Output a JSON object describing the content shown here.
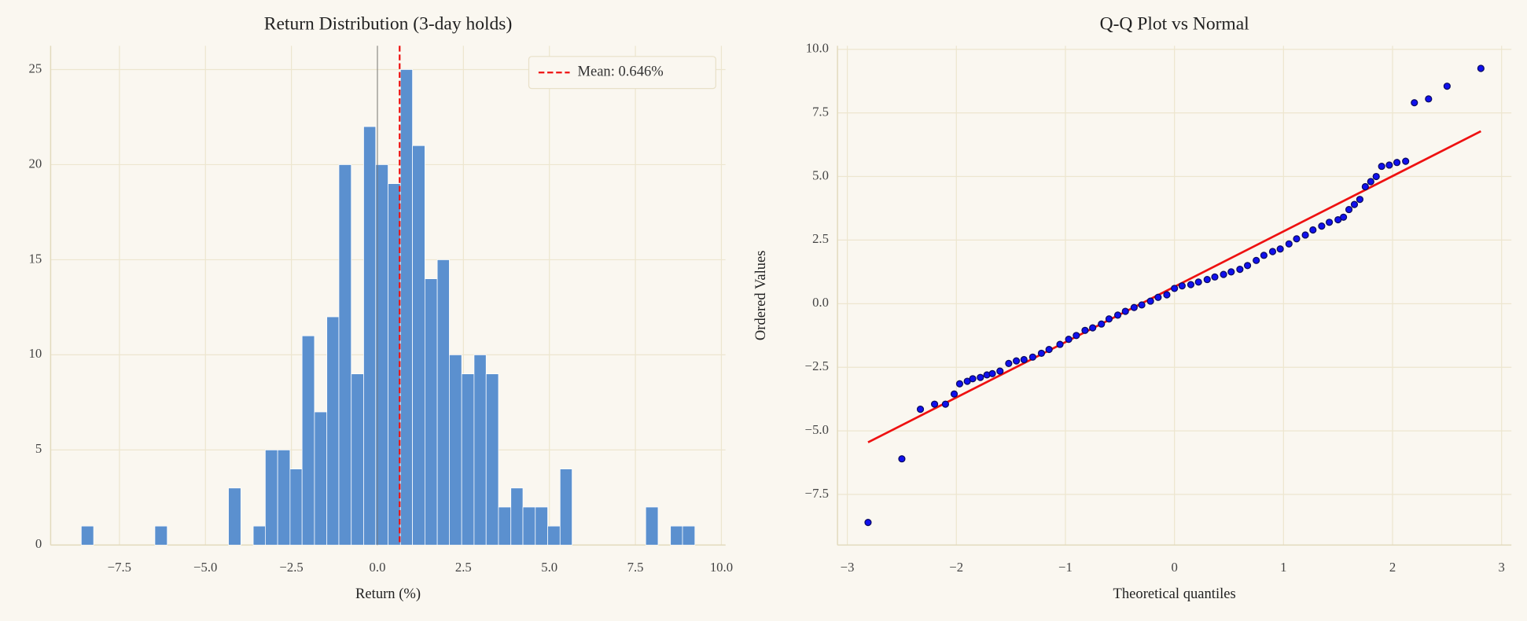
{
  "chart_data": [
    {
      "type": "histogram",
      "title": "Return Distribution (3-day holds)",
      "xlabel": "Return (%)",
      "bins": [
        -8.61,
        -8.25,
        -7.9,
        -7.54,
        -7.18,
        -6.83,
        -6.47,
        -6.11,
        -5.76,
        -5.4,
        -5.04,
        -4.69,
        -4.33,
        -3.97,
        -3.61,
        -3.26,
        -2.9,
        -2.54,
        -2.19,
        -1.83,
        -1.47,
        -1.12,
        -0.76,
        -0.4,
        -0.05,
        0.31,
        0.67,
        1.02,
        1.38,
        1.74,
        2.09,
        2.45,
        2.81,
        3.16,
        3.52,
        3.88,
        4.23,
        4.59,
        4.95,
        5.31,
        5.66,
        6.02,
        6.38,
        6.73,
        7.09,
        7.45,
        7.8,
        8.16,
        8.52,
        8.87,
        9.23
      ],
      "counts": [
        1,
        0,
        0,
        0,
        0,
        0,
        1,
        0,
        0,
        0,
        0,
        0,
        3,
        0,
        1,
        5,
        5,
        4,
        11,
        7,
        12,
        20,
        9,
        22,
        20,
        19,
        25,
        21,
        14,
        15,
        10,
        9,
        10,
        9,
        2,
        3,
        2,
        2,
        1,
        4,
        0,
        0,
        0,
        0,
        0,
        0,
        2,
        0,
        1,
        1
      ],
      "color": "#5b90cf",
      "zero_line": 0,
      "mean_line": {
        "value": 0.646,
        "label": "Mean: 0.646%",
        "color": "#ee1111"
      },
      "legend": "upper right",
      "grid": true,
      "xlim": [
        -9.5,
        10.12
      ],
      "ylim": [
        0,
        26.25
      ],
      "xticks": [
        {
          "value": -7.5,
          "label": "−7.5"
        },
        {
          "value": -5,
          "label": "−5.0"
        },
        {
          "value": -2.5,
          "label": "−2.5"
        },
        {
          "value": 0,
          "label": "0.0"
        },
        2.5,
        {
          "value": 5,
          "label": "5.0"
        },
        7.5,
        {
          "value": 10,
          "label": "10.0"
        }
      ],
      "yticks": [
        0,
        5,
        10,
        15,
        20,
        25
      ]
    },
    {
      "type": "scatter",
      "title": "Q-Q Plot vs Normal",
      "xlabel": "Theoretical quantiles",
      "ylabel": "Ordered Values",
      "series": [
        {
          "color": "#1010ee",
          "x": [
            -2.81,
            -2.5,
            -2.33,
            -2.2,
            -2.1,
            -2.02,
            -1.97,
            -1.9,
            -1.85,
            -1.78,
            -1.72,
            -1.67,
            -1.6,
            -1.52,
            -1.45,
            -1.38,
            -1.3,
            -1.22,
            -1.15,
            -1.05,
            -0.97,
            -0.9,
            -0.82,
            -0.75,
            -0.67,
            -0.6,
            -0.52,
            -0.45,
            -0.37,
            -0.3,
            -0.22,
            -0.15,
            -0.07,
            0.0,
            0.07,
            0.15,
            0.22,
            0.3,
            0.37,
            0.45,
            0.52,
            0.6,
            0.67,
            0.75,
            0.82,
            0.9,
            0.97,
            1.05,
            1.12,
            1.2,
            1.27,
            1.35,
            1.42,
            1.5,
            1.55,
            1.6,
            1.65,
            1.7,
            1.75,
            1.8,
            1.85,
            1.9,
            1.97,
            2.04,
            2.12,
            2.2,
            2.33,
            2.5,
            2.81
          ],
          "y": [
            -8.6,
            -6.1,
            -4.15,
            -3.95,
            -3.95,
            -3.55,
            -3.15,
            -3.05,
            -2.95,
            -2.9,
            -2.8,
            -2.75,
            -2.65,
            -2.35,
            -2.25,
            -2.2,
            -2.1,
            -1.95,
            -1.8,
            -1.6,
            -1.4,
            -1.25,
            -1.05,
            -0.95,
            -0.8,
            -0.6,
            -0.45,
            -0.3,
            -0.15,
            -0.05,
            0.1,
            0.25,
            0.35,
            0.6,
            0.7,
            0.75,
            0.85,
            0.95,
            1.05,
            1.15,
            1.25,
            1.35,
            1.5,
            1.7,
            1.9,
            2.05,
            2.15,
            2.35,
            2.55,
            2.7,
            2.9,
            3.05,
            3.2,
            3.3,
            3.4,
            3.7,
            3.9,
            4.1,
            4.6,
            4.8,
            5.0,
            5.4,
            5.45,
            5.55,
            5.6,
            7.9,
            8.05,
            8.55,
            9.25
          ]
        }
      ],
      "fit_line": {
        "x": [
          -2.81,
          2.81
        ],
        "y": [
          -5.45,
          6.78
        ],
        "color": "#ee1111"
      },
      "grid": true,
      "xlim": [
        -3.09,
        3.09
      ],
      "ylim": [
        -9.49,
        10.14
      ],
      "xticks": [
        {
          "value": -3,
          "label": "−3"
        },
        {
          "value": -2,
          "label": "−2"
        },
        {
          "value": -1,
          "label": "−1"
        },
        0,
        1,
        2,
        3
      ],
      "yticks": [
        {
          "value": -7.5,
          "label": "−7.5"
        },
        {
          "value": -5,
          "label": "−5.0"
        },
        {
          "value": -2.5,
          "label": "−2.5"
        },
        {
          "value": 0,
          "label": "0.0"
        },
        2.5,
        {
          "value": 5,
          "label": "5.0"
        },
        7.5,
        {
          "value": 10,
          "label": "10.0"
        }
      ]
    }
  ]
}
